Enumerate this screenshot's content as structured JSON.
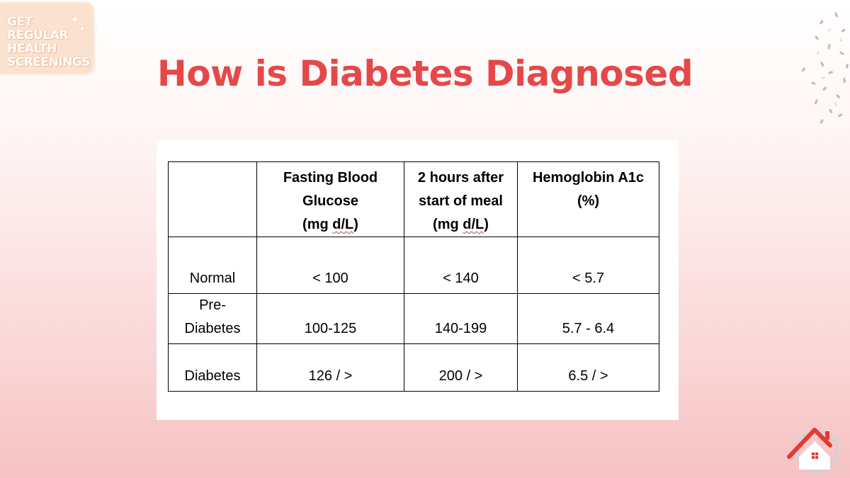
{
  "badge": {
    "lines": [
      "GET",
      "REGULAR",
      "HEALTH",
      "SCREENINGS"
    ],
    "icon": "sparkle-icon"
  },
  "title": "How is Diabetes Diagnosed",
  "table": {
    "headers": [
      "",
      [
        "Fasting Blood",
        "Glucose",
        "(mg d/L)"
      ],
      [
        "2 hours after",
        "start of meal",
        "(mg d/L)"
      ],
      [
        "Hemoglobin A1c",
        "(%)"
      ]
    ],
    "rows": [
      {
        "label": [
          "Normal"
        ],
        "values": [
          "< 100",
          "< 140",
          "< 5.7"
        ]
      },
      {
        "label": [
          "Pre-",
          "Diabetes"
        ],
        "values": [
          "100-125",
          "140-199",
          "5.7 - 6.4"
        ]
      },
      {
        "label": [
          "Diabetes"
        ],
        "values": [
          "126 / >",
          "200 / >",
          "6.5 / >"
        ]
      }
    ]
  },
  "colors": {
    "title": "#e54848",
    "badge_bg": "#fbe2cf",
    "logo_red": "#e53935"
  },
  "icons": {
    "home_logo": "home-heart-logo-icon",
    "decoration": "confetti-icon"
  }
}
